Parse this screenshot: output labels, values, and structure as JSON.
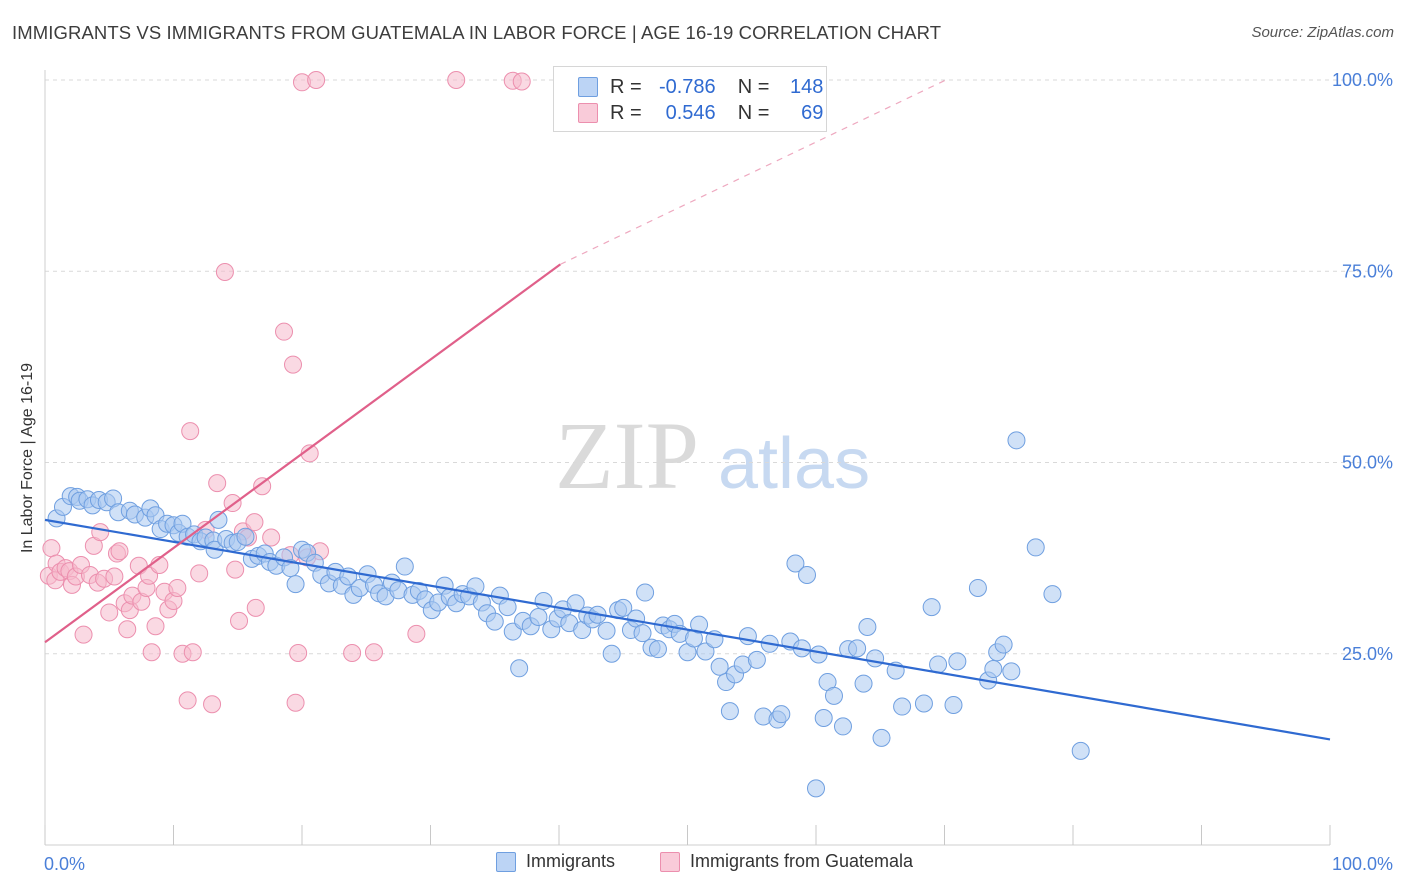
{
  "title": "IMMIGRANTS VS IMMIGRANTS FROM GUATEMALA IN LABOR FORCE | AGE 16-19 CORRELATION CHART",
  "source": "Source: ZipAtlas.com",
  "watermark": {
    "zip": "ZIP",
    "atlas": "atlas"
  },
  "legend": {
    "rows": [
      {
        "r_label": "R =",
        "r_value": "-0.786",
        "n_label": "N =",
        "n_value": "148"
      },
      {
        "r_label": "R =",
        "r_value": "0.546",
        "n_label": "N =",
        "n_value": "69"
      }
    ]
  },
  "bottom_legend": [
    "Immigrants",
    "Immigrants from Guatemala"
  ],
  "colors": {
    "blue_fill": "#a9c8f0",
    "blue_stroke": "#6f9fe0",
    "blue_line": "#2f6ad1",
    "pink_fill": "#f6b9cc",
    "pink_stroke": "#ec8fae",
    "pink_line": "#e0608a",
    "grid": "#d9d9d9",
    "tick_label": "#4a7fd8"
  },
  "chart_data": {
    "type": "scatter",
    "xlabel": "",
    "ylabel": "In Labor Force | Age 16-19",
    "xlim": [
      0,
      100
    ],
    "ylim": [
      0,
      102.5
    ],
    "x_tick_labels": [
      "0.0%",
      "100.0%"
    ],
    "y_ticks": [
      25,
      50,
      75,
      100
    ],
    "y_tick_labels": [
      "25.0%",
      "50.0%",
      "75.0%",
      "100.0%"
    ],
    "grid": "horizontal dashed",
    "legend_position": "top-center",
    "series": [
      {
        "name": "Immigrants",
        "r": -0.786,
        "n": 148,
        "trend": {
          "x0": 0,
          "y0": 42.5,
          "x1": 100,
          "y1": 13.8
        },
        "points": [
          [
            0.9,
            42.7
          ],
          [
            1.4,
            44.2
          ],
          [
            2.0,
            45.6
          ],
          [
            2.5,
            45.5
          ],
          [
            2.7,
            45.0
          ],
          [
            3.3,
            45.2
          ],
          [
            3.7,
            44.4
          ],
          [
            4.2,
            45.1
          ],
          [
            4.8,
            44.8
          ],
          [
            5.3,
            45.3
          ],
          [
            5.7,
            43.5
          ],
          [
            6.6,
            43.7
          ],
          [
            7.0,
            43.2
          ],
          [
            7.8,
            42.8
          ],
          [
            8.2,
            44.0
          ],
          [
            8.6,
            43.1
          ],
          [
            9.0,
            41.3
          ],
          [
            9.5,
            42.0
          ],
          [
            10.0,
            41.8
          ],
          [
            10.4,
            40.8
          ],
          [
            10.7,
            42.0
          ],
          [
            11.1,
            40.3
          ],
          [
            11.6,
            40.6
          ],
          [
            12.1,
            39.7
          ],
          [
            12.5,
            40.2
          ],
          [
            13.1,
            39.8
          ],
          [
            13.2,
            38.6
          ],
          [
            13.5,
            42.5
          ],
          [
            14.1,
            40.0
          ],
          [
            14.6,
            39.5
          ],
          [
            15.0,
            39.6
          ],
          [
            15.6,
            40.3
          ],
          [
            16.1,
            37.4
          ],
          [
            16.6,
            37.8
          ],
          [
            17.1,
            38.1
          ],
          [
            17.5,
            37.0
          ],
          [
            18.0,
            36.5
          ],
          [
            18.6,
            37.6
          ],
          [
            19.1,
            36.2
          ],
          [
            19.5,
            34.1
          ],
          [
            20.0,
            38.6
          ],
          [
            20.4,
            38.2
          ],
          [
            21.0,
            36.9
          ],
          [
            21.5,
            35.3
          ],
          [
            22.1,
            34.2
          ],
          [
            22.6,
            35.7
          ],
          [
            23.1,
            33.9
          ],
          [
            23.6,
            35.1
          ],
          [
            24.0,
            32.7
          ],
          [
            24.5,
            33.6
          ],
          [
            25.1,
            35.4
          ],
          [
            25.6,
            34.0
          ],
          [
            26.0,
            32.9
          ],
          [
            26.5,
            32.5
          ],
          [
            27.0,
            34.3
          ],
          [
            27.5,
            33.3
          ],
          [
            28.0,
            36.4
          ],
          [
            28.6,
            32.7
          ],
          [
            29.1,
            33.2
          ],
          [
            29.6,
            32.1
          ],
          [
            30.1,
            30.7
          ],
          [
            30.6,
            31.7
          ],
          [
            31.1,
            33.9
          ],
          [
            31.5,
            32.4
          ],
          [
            32.0,
            31.6
          ],
          [
            32.5,
            32.8
          ],
          [
            33.0,
            32.5
          ],
          [
            33.5,
            33.8
          ],
          [
            34.0,
            31.7
          ],
          [
            34.4,
            30.3
          ],
          [
            35.0,
            29.2
          ],
          [
            35.4,
            32.6
          ],
          [
            36.0,
            31.1
          ],
          [
            36.4,
            27.9
          ],
          [
            36.9,
            23.1
          ],
          [
            37.2,
            29.3
          ],
          [
            37.8,
            28.6
          ],
          [
            38.4,
            29.8
          ],
          [
            38.8,
            31.9
          ],
          [
            39.4,
            28.2
          ],
          [
            39.9,
            29.6
          ],
          [
            40.3,
            30.8
          ],
          [
            40.8,
            29.0
          ],
          [
            41.3,
            31.6
          ],
          [
            41.8,
            28.1
          ],
          [
            42.2,
            30.0
          ],
          [
            42.6,
            29.5
          ],
          [
            43.0,
            30.1
          ],
          [
            43.7,
            28.0
          ],
          [
            44.1,
            25.0
          ],
          [
            44.6,
            30.7
          ],
          [
            45.0,
            31.0
          ],
          [
            45.6,
            28.1
          ],
          [
            46.0,
            29.6
          ],
          [
            46.5,
            27.7
          ],
          [
            46.7,
            33.0
          ],
          [
            47.2,
            25.8
          ],
          [
            47.7,
            25.6
          ],
          [
            48.1,
            28.7
          ],
          [
            48.6,
            28.2
          ],
          [
            49.0,
            28.9
          ],
          [
            49.4,
            27.6
          ],
          [
            50.0,
            25.2
          ],
          [
            50.5,
            27.0
          ],
          [
            50.9,
            28.8
          ],
          [
            51.4,
            25.3
          ],
          [
            52.1,
            26.9
          ],
          [
            52.5,
            23.3
          ],
          [
            53.0,
            21.3
          ],
          [
            53.3,
            17.5
          ],
          [
            53.7,
            22.3
          ],
          [
            54.3,
            23.6
          ],
          [
            54.7,
            27.3
          ],
          [
            55.4,
            24.2
          ],
          [
            55.9,
            16.8
          ],
          [
            56.4,
            26.3
          ],
          [
            57.0,
            16.4
          ],
          [
            57.3,
            17.1
          ],
          [
            58.0,
            26.6
          ],
          [
            58.4,
            36.8
          ],
          [
            58.9,
            25.7
          ],
          [
            59.3,
            35.3
          ],
          [
            60.2,
            24.9
          ],
          [
            60.6,
            16.6
          ],
          [
            60.9,
            21.3
          ],
          [
            61.4,
            19.5
          ],
          [
            62.1,
            15.5
          ],
          [
            62.5,
            25.6
          ],
          [
            63.2,
            25.7
          ],
          [
            63.7,
            21.1
          ],
          [
            64.0,
            28.5
          ],
          [
            64.6,
            24.4
          ],
          [
            65.1,
            14.0
          ],
          [
            66.2,
            22.8
          ],
          [
            66.7,
            18.1
          ],
          [
            68.4,
            18.5
          ],
          [
            69.0,
            31.1
          ],
          [
            69.5,
            23.6
          ],
          [
            70.7,
            18.3
          ],
          [
            71.0,
            24.0
          ],
          [
            72.6,
            33.6
          ],
          [
            73.4,
            21.5
          ],
          [
            73.8,
            23.0
          ],
          [
            74.1,
            25.2
          ],
          [
            74.6,
            26.2
          ],
          [
            75.2,
            22.7
          ],
          [
            75.6,
            52.9
          ],
          [
            77.1,
            38.9
          ],
          [
            78.4,
            32.8
          ],
          [
            80.6,
            12.3
          ],
          [
            60.0,
            7.4
          ]
        ]
      },
      {
        "name": "Immigrants from Guatemala",
        "r": 0.546,
        "n": 69,
        "trend": {
          "x0": 0,
          "y0": 26.5,
          "x1": 40.1,
          "y1": 75.9,
          "dash_x1": 70.1,
          "dash_y1": 100.0
        },
        "points": [
          [
            0.3,
            35.2
          ],
          [
            0.5,
            38.8
          ],
          [
            0.8,
            34.6
          ],
          [
            0.9,
            36.8
          ],
          [
            1.2,
            35.7
          ],
          [
            1.6,
            36.2
          ],
          [
            1.9,
            35.8
          ],
          [
            2.1,
            34.0
          ],
          [
            2.4,
            35.1
          ],
          [
            2.8,
            36.6
          ],
          [
            3.0,
            27.5
          ],
          [
            3.5,
            35.3
          ],
          [
            3.8,
            39.1
          ],
          [
            4.1,
            34.3
          ],
          [
            4.3,
            40.9
          ],
          [
            4.6,
            34.8
          ],
          [
            5.0,
            30.4
          ],
          [
            5.4,
            35.1
          ],
          [
            5.6,
            38.1
          ],
          [
            5.8,
            38.4
          ],
          [
            6.2,
            31.6
          ],
          [
            6.4,
            28.2
          ],
          [
            6.6,
            30.7
          ],
          [
            6.8,
            32.6
          ],
          [
            7.3,
            36.5
          ],
          [
            7.5,
            31.8
          ],
          [
            7.9,
            33.6
          ],
          [
            8.1,
            35.2
          ],
          [
            8.3,
            25.2
          ],
          [
            8.6,
            28.6
          ],
          [
            8.9,
            36.6
          ],
          [
            9.3,
            33.1
          ],
          [
            9.6,
            30.8
          ],
          [
            10.0,
            31.9
          ],
          [
            10.3,
            33.6
          ],
          [
            10.7,
            25.0
          ],
          [
            11.1,
            18.9
          ],
          [
            11.3,
            54.1
          ],
          [
            11.5,
            25.2
          ],
          [
            12.0,
            35.5
          ],
          [
            12.5,
            41.2
          ],
          [
            13.0,
            18.4
          ],
          [
            13.4,
            47.3
          ],
          [
            14.0,
            74.9
          ],
          [
            14.6,
            44.7
          ],
          [
            14.8,
            36.0
          ],
          [
            15.1,
            29.3
          ],
          [
            15.4,
            41.0
          ],
          [
            15.8,
            40.2
          ],
          [
            16.3,
            42.2
          ],
          [
            16.4,
            31.0
          ],
          [
            16.9,
            46.9
          ],
          [
            17.6,
            40.2
          ],
          [
            18.6,
            67.1
          ],
          [
            19.1,
            37.9
          ],
          [
            19.3,
            62.8
          ],
          [
            19.5,
            18.6
          ],
          [
            19.7,
            25.1
          ],
          [
            20.4,
            37.6
          ],
          [
            20.6,
            51.2
          ],
          [
            21.4,
            38.4
          ],
          [
            23.9,
            25.1
          ],
          [
            25.6,
            25.2
          ],
          [
            28.9,
            27.6
          ],
          [
            20.0,
            99.7
          ],
          [
            21.1,
            100.0
          ],
          [
            32.0,
            100.0
          ],
          [
            36.4,
            99.9
          ],
          [
            37.1,
            99.8
          ]
        ]
      }
    ]
  }
}
